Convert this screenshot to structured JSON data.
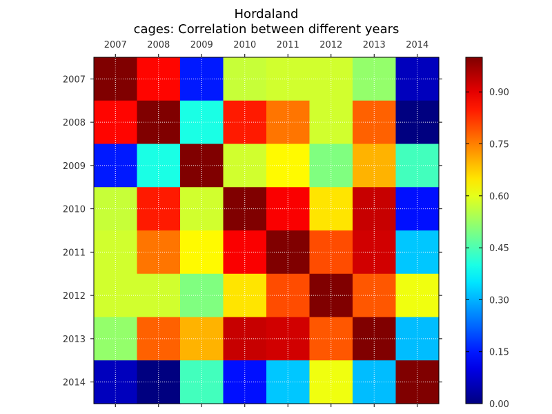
{
  "chart_data": {
    "type": "heatmap",
    "title": "Hordaland",
    "subtitle": "cages: Correlation between different years",
    "x_categories": [
      "2007",
      "2008",
      "2009",
      "2010",
      "2011",
      "2012",
      "2013",
      "2014"
    ],
    "y_categories": [
      "2007",
      "2008",
      "2009",
      "2010",
      "2011",
      "2012",
      "2013",
      "2014"
    ],
    "values": [
      [
        1.0,
        0.87,
        0.15,
        0.57,
        0.58,
        0.58,
        0.52,
        0.06
      ],
      [
        0.87,
        1.0,
        0.4,
        0.85,
        0.76,
        0.58,
        0.78,
        0.0
      ],
      [
        0.15,
        0.4,
        1.0,
        0.58,
        0.63,
        0.5,
        0.7,
        0.44
      ],
      [
        0.57,
        0.85,
        0.58,
        1.0,
        0.88,
        0.65,
        0.93,
        0.14
      ],
      [
        0.58,
        0.76,
        0.63,
        0.88,
        1.0,
        0.8,
        0.92,
        0.32
      ],
      [
        0.58,
        0.58,
        0.5,
        0.65,
        0.8,
        1.0,
        0.79,
        0.61
      ],
      [
        0.52,
        0.78,
        0.7,
        0.93,
        0.92,
        0.79,
        1.0,
        0.31
      ],
      [
        0.06,
        0.0,
        0.44,
        0.14,
        0.32,
        0.61,
        0.31,
        1.0
      ]
    ],
    "colormap": "jet",
    "colorbar": {
      "range": [
        0.0,
        1.0
      ],
      "ticks": [
        0.0,
        0.15,
        0.3,
        0.45,
        0.6,
        0.75,
        0.9
      ],
      "tick_labels": [
        "0.00",
        "0.15",
        "0.30",
        "0.45",
        "0.60",
        "0.75",
        "0.90"
      ]
    },
    "x_tick_position": "top",
    "grid": true
  }
}
